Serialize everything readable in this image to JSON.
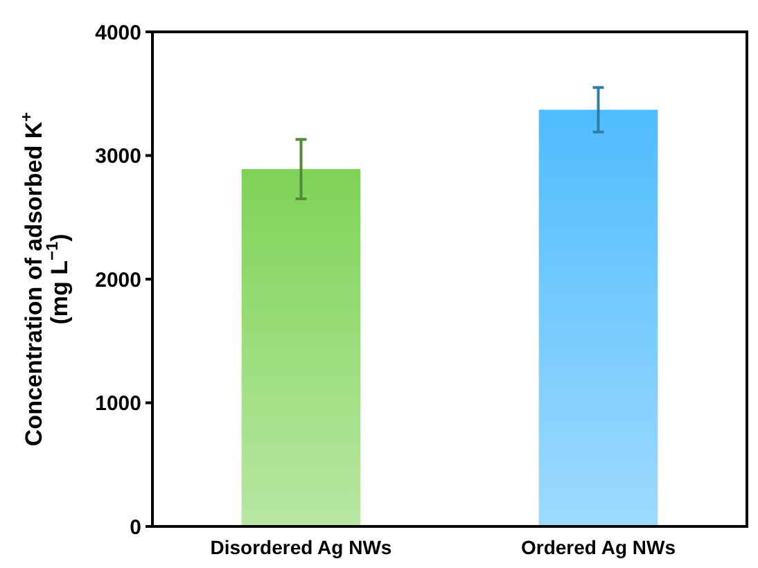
{
  "chart_data": {
    "type": "bar",
    "ylabel": "Concentration of adsorbed K$^{+}$\n(mg L$^{−1}$)",
    "categories": [
      "Disordered Ag NWs",
      "Ordered Ag NWs"
    ],
    "values": [
      2890,
      3370
    ],
    "colors": [
      "#7ed356",
      "#4fbcfd"
    ],
    "errors": [
      240,
      180
    ],
    "ylim": [
      0,
      4000
    ],
    "yticks": [
      0,
      1000,
      2000,
      3000,
      4000
    ],
    "grid": false
  }
}
